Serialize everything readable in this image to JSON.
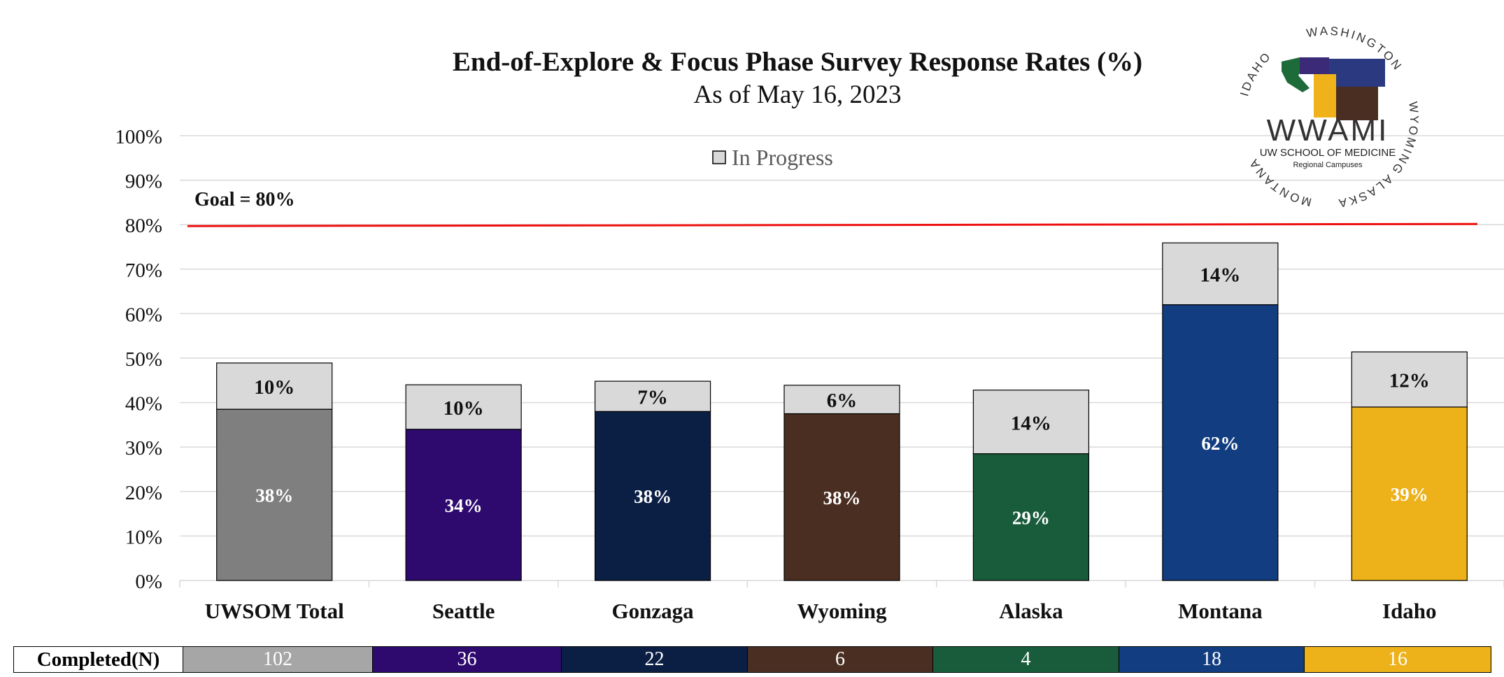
{
  "title": "End-of-Explore & Focus Phase Survey Response Rates (%)",
  "subtitle": "As of May 16, 2023",
  "legend": {
    "in_progress": "In Progress",
    "in_progress_color": "#d9d9d9"
  },
  "goal": {
    "label": "Goal = 80%",
    "value": 80,
    "color": "#ee1111"
  },
  "logo": {
    "wordmark": "WWAMI",
    "line1": "UW SCHOOL OF MEDICINE",
    "line2": "Regional Campuses",
    "ring": [
      "WASHINGTON",
      "WYOMING",
      "ALASKA",
      "MONTANA",
      "IDAHO"
    ]
  },
  "chart_data": {
    "type": "bar",
    "stacked": true,
    "title": "End-of-Explore & Focus Phase Survey Response Rates (%)",
    "subtitle": "As of May 16, 2023",
    "categories": [
      "UWSOM Total",
      "Seattle",
      "Gonzaga",
      "Wyoming",
      "Alaska",
      "Montana",
      "Idaho"
    ],
    "series": [
      {
        "name": "Completed",
        "values": [
          38.5,
          34,
          38,
          37.5,
          28.5,
          62,
          39
        ],
        "labels": [
          "38%",
          "34%",
          "38%",
          "38%",
          "29%",
          "62%",
          "39%"
        ],
        "colors": [
          "#7f7f7f",
          "#2e0a6e",
          "#0b1f45",
          "#4a2e22",
          "#195c3c",
          "#123d80",
          "#edb11a"
        ]
      },
      {
        "name": "In Progress",
        "values": [
          10.4,
          10,
          6.8,
          6.4,
          14.3,
          13.9,
          12.4
        ],
        "labels": [
          "10%",
          "10%",
          "7%",
          "6%",
          "14%",
          "14%",
          "12%"
        ],
        "color": "#d9d9d9"
      }
    ],
    "yticks": [
      "0%",
      "10%",
      "20%",
      "30%",
      "40%",
      "50%",
      "60%",
      "70%",
      "80%",
      "90%",
      "100%"
    ],
    "ylim": [
      0,
      100
    ],
    "grid": true,
    "legend": "top-center"
  },
  "completed_table": {
    "header": "Completed(N)",
    "values": [
      "102",
      "36",
      "22",
      "6",
      "4",
      "18",
      "16"
    ],
    "colors": [
      "#a6a6a6",
      "#2e0a6e",
      "#0b1f45",
      "#4a2e22",
      "#195c3c",
      "#123d80",
      "#edb11a"
    ]
  }
}
